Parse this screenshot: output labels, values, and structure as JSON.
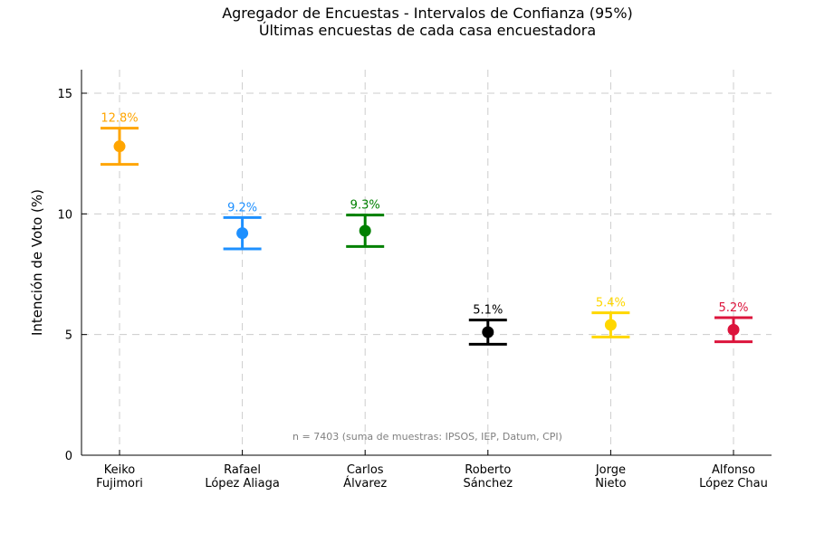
{
  "chart_data": {
    "type": "scatter",
    "title": "Agregador de Encuestas - Intervalos de Confianza (95%)",
    "subtitle": "Últimas encuestas de cada casa encuestadora",
    "ylabel": "Intención de Voto (%)",
    "xlabel": "",
    "ylim": [
      0,
      16
    ],
    "yticks": [
      0,
      5,
      10,
      15
    ],
    "grid": true,
    "candidates": [
      {
        "name_line1": "Keiko",
        "name_line2": "Fujimori",
        "value": 12.8,
        "lower": 12.05,
        "upper": 13.55,
        "label": "12.8%",
        "color": "#FFA500"
      },
      {
        "name_line1": "Rafael",
        "name_line2": "López Aliaga",
        "value": 9.2,
        "lower": 8.55,
        "upper": 9.85,
        "label": "9.2%",
        "color": "#1E90FF"
      },
      {
        "name_line1": "Carlos",
        "name_line2": "Álvarez",
        "value": 9.3,
        "lower": 8.65,
        "upper": 9.95,
        "label": "9.3%",
        "color": "#008000"
      },
      {
        "name_line1": "Roberto",
        "name_line2": "Sánchez",
        "value": 5.1,
        "lower": 4.6,
        "upper": 5.6,
        "label": "5.1%",
        "color": "#000000"
      },
      {
        "name_line1": "Jorge",
        "name_line2": "Nieto",
        "value": 5.4,
        "lower": 4.9,
        "upper": 5.9,
        "label": "5.4%",
        "color": "#FFD700"
      },
      {
        "name_line1": "Alfonso",
        "name_line2": "López Chau",
        "value": 5.2,
        "lower": 4.7,
        "upper": 5.7,
        "label": "5.2%",
        "color": "#DC143C"
      }
    ],
    "annotation": "n = 7403 (suma de muestras: IPSOS, IEP, Datum, CPI)"
  }
}
